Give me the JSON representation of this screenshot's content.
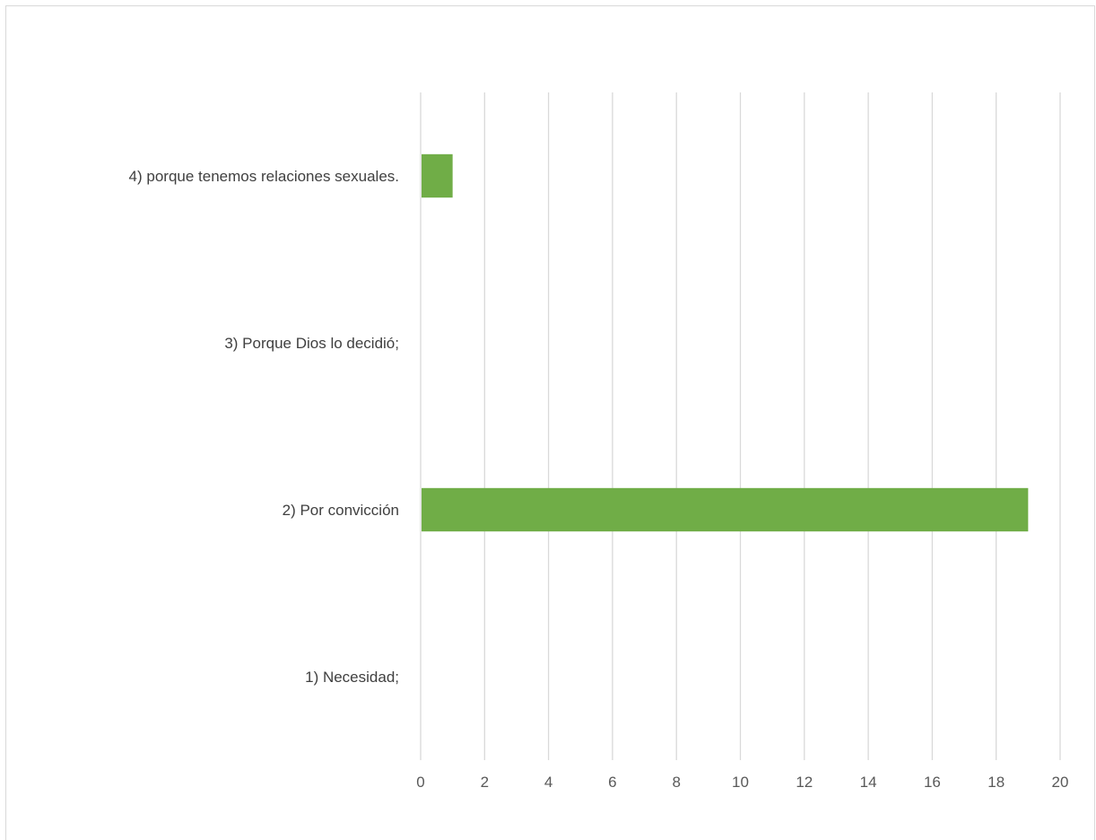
{
  "chart_data": {
    "type": "bar",
    "orientation": "horizontal",
    "categories": [
      "1) Necesidad;",
      "2) Por convicción",
      "3) Porque Dios lo decidió;",
      "4) porque tenemos relaciones sexuales."
    ],
    "values": [
      0,
      19,
      0,
      1
    ],
    "xlim": [
      0,
      20
    ],
    "xticks": [
      "0",
      "2",
      "4",
      "6",
      "8",
      "10",
      "12",
      "14",
      "16",
      "18",
      "20"
    ],
    "grid": true,
    "legend": "none",
    "bar_color": "#70ad47",
    "grid_color": "#d9d9d9",
    "title": "",
    "xlabel": "",
    "ylabel": ""
  }
}
